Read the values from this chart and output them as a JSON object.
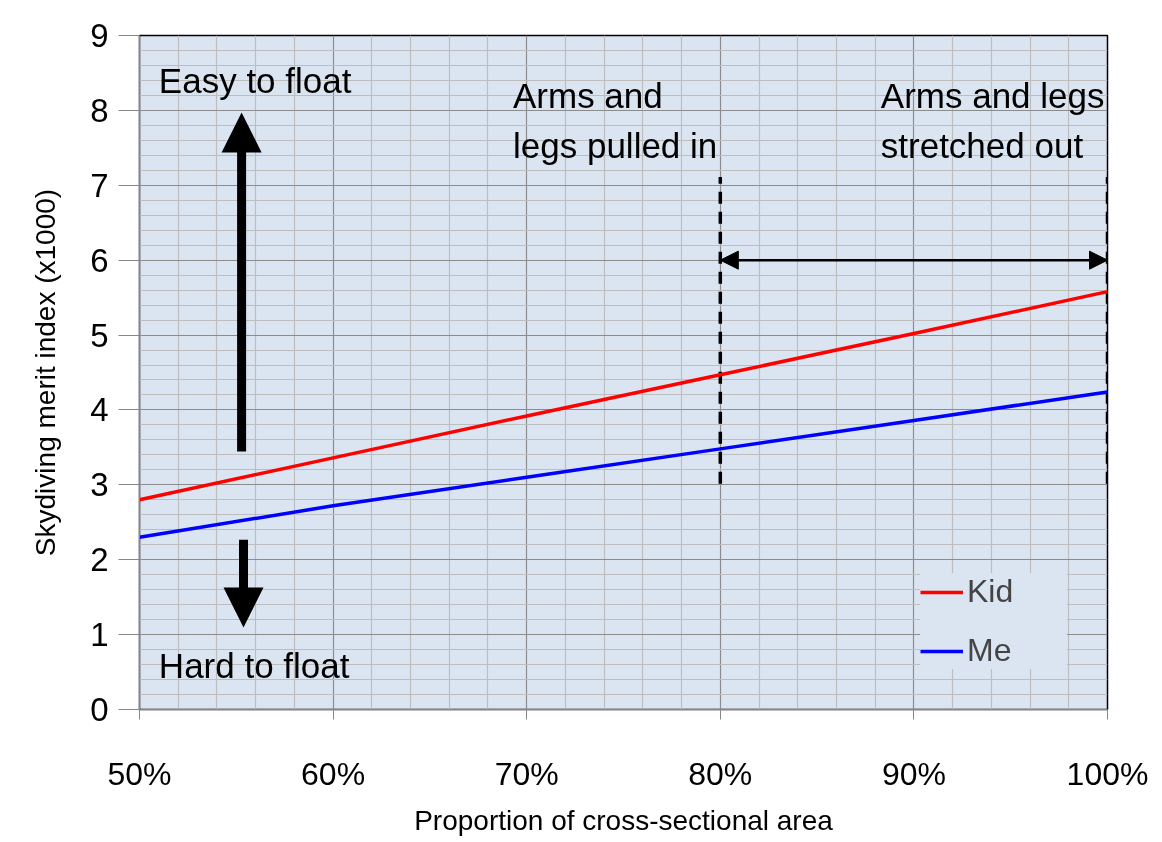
{
  "chart_data": {
    "type": "line",
    "xlabel": "Proportion of cross-sectional area",
    "ylabel": "Skydiving merit index (x1000)",
    "x": [
      50,
      60,
      70,
      80,
      90,
      100
    ],
    "series": [
      {
        "name": "Kid",
        "color": "#ff0000",
        "values": [
          2.8,
          3.36,
          3.92,
          4.47,
          5.02,
          5.58
        ]
      },
      {
        "name": "Me",
        "color": "#0000ff",
        "values": [
          2.3,
          2.72,
          3.1,
          3.48,
          3.86,
          4.24
        ]
      }
    ],
    "xlim": [
      50,
      100
    ],
    "xticks": [
      {
        "value": 50,
        "label": "50%"
      },
      {
        "value": 60,
        "label": "60%"
      },
      {
        "value": 70,
        "label": "70%"
      },
      {
        "value": 80,
        "label": "80%"
      },
      {
        "value": 90,
        "label": "90%"
      },
      {
        "value": 100,
        "label": "100%"
      }
    ],
    "ylim": [
      0,
      9
    ],
    "yticks": [
      0,
      1,
      2,
      3,
      4,
      5,
      6,
      7,
      8,
      9
    ],
    "ref_lines": [
      {
        "axis": "x",
        "value": 80,
        "label": "Arms and\nlegs pulled in",
        "color": "#000000",
        "line_style": "dashed"
      },
      {
        "axis": "x",
        "value": 100,
        "label": "Arms and legs\nstretched out",
        "color": "#000000",
        "line_style": "dashed"
      }
    ],
    "annotations": [
      "Easy to float",
      "Hard to float"
    ],
    "grid": true,
    "legend": "bottom right"
  }
}
